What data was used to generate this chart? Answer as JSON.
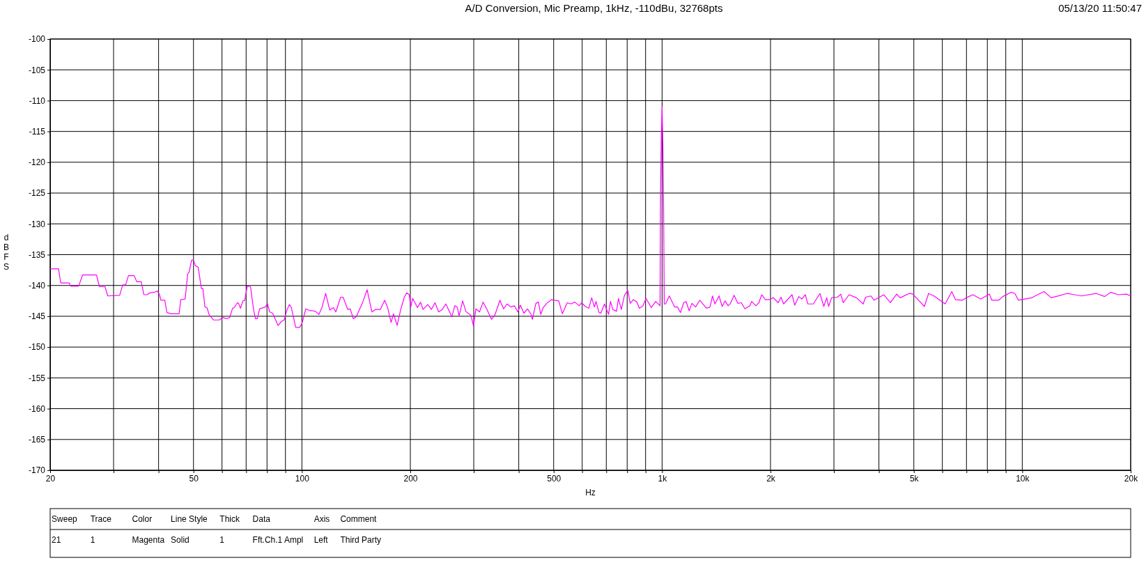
{
  "chart_data": {
    "type": "line",
    "title": "A/D Conversion, Mic Preamp, 1kHz, -110dBu, 32768pts",
    "xlabel": "Hz",
    "ylabel": "dBFS",
    "log": "x",
    "grid": true,
    "line_style": "solid",
    "annotations": [
      "05/13/20 11:50:47",
      "Sweep",
      "Trace",
      "Color",
      "Line Style",
      "Thick",
      "Data",
      "Axis",
      "Comment",
      "21",
      "1",
      "Magenta",
      "Solid",
      "1",
      "Fft.Ch.1 Ampl",
      "Left",
      "Third Party"
    ],
    "xlim": [
      20,
      20000
    ],
    "ylim": [
      -170,
      -100
    ],
    "xticks": [
      20,
      {
        "value": 30,
        "label": null
      },
      {
        "value": 40,
        "label": null
      },
      50,
      {
        "value": 60,
        "label": null
      },
      {
        "value": 70,
        "label": null
      },
      {
        "value": 80,
        "label": null
      },
      {
        "value": 90,
        "label": null
      },
      100,
      200,
      {
        "value": 300,
        "label": null
      },
      {
        "value": 400,
        "label": null
      },
      500,
      {
        "value": 600,
        "label": null
      },
      {
        "value": 700,
        "label": null
      },
      {
        "value": 800,
        "label": null
      },
      {
        "value": 900,
        "label": null
      },
      {
        "value": 1000,
        "label": "1k"
      },
      {
        "value": 2000,
        "label": "2k"
      },
      {
        "value": 3000,
        "label": null
      },
      {
        "value": 4000,
        "label": null
      },
      {
        "value": 5000,
        "label": "5k"
      },
      {
        "value": 6000,
        "label": null
      },
      {
        "value": 7000,
        "label": null
      },
      {
        "value": 8000,
        "label": null
      },
      {
        "value": 9000,
        "label": null
      },
      {
        "value": 10000,
        "label": "10k"
      },
      {
        "value": 20000,
        "label": "20k"
      }
    ],
    "yticks": [
      -170,
      -165,
      -160,
      -155,
      -150,
      -145,
      -140,
      -135,
      -130,
      -125,
      -120,
      -115,
      -110,
      -105,
      -100
    ],
    "series": [
      {
        "color": "#ff00ff",
        "x": [
          20,
          21.1,
          21.4,
          22.6,
          22.8,
          24.0,
          24.6,
          26.9,
          27.4,
          28.4,
          28.9,
          31.2,
          31.8,
          32.4,
          33.0,
          34.2,
          34.8,
          35.8,
          36.4,
          37.2,
          37.8,
          39.0,
          39.6,
          40.2,
          40.6,
          41.6,
          42.2,
          43.4,
          45.6,
          46.1,
          47.4,
          48.2,
          48.6,
          49.4,
          50.0,
          50.6,
          51.5,
          52.6,
          53.1,
          53.8,
          54.5,
          55.3,
          56.8,
          59.0,
          60.2,
          61.8,
          63.0,
          64.2,
          64.9,
          66.2,
          66.7,
          67.5,
          68.6,
          69.4,
          70.5,
          72.0,
          73.4,
          74.3,
          75.2,
          76.3,
          79.2,
          80.2,
          81.4,
          82.9,
          85.9,
          87.9,
          89.3,
          90.7,
          92.3,
          93.5,
          96.1,
          98.6,
          100,
          102.5,
          105.4,
          107,
          109,
          111.5,
          113.8,
          116.4,
          119.5,
          122.3,
          124.2,
          128.1,
          130.1,
          134.1,
          136.2,
          138.9,
          141.5,
          147.1,
          151.7,
          156.4,
          160.1,
          165.1,
          169.7,
          172.8,
          176.9,
          179.6,
          183.8,
          188.1,
          192.5,
          195.4,
          198.5,
          200.6,
          203,
          209.4,
          213.5,
          216.9,
          220.2,
          223.6,
          228.8,
          234.2,
          239.7,
          245.3,
          251.0,
          260.8,
          265.7,
          269.8,
          273.2,
          279.5,
          285.1,
          294.9,
          299.5,
          304.1,
          311.2,
          318.4,
          325.8,
          336.0,
          343.9,
          354.6,
          362.9,
          371.3,
          380.0,
          388.8,
          397.9,
          404.0,
          413.4,
          423.1,
          432.9,
          436.3,
          446.4,
          453.4,
          460.4,
          467.6,
          478.4,
          493.4,
          501.1,
          516.6,
          528.6,
          545.1,
          557.9,
          572.7,
          588.8,
          597.8,
          611.7,
          626.0,
          637.7,
          648.5,
          655.6,
          667.8,
          676.1,
          691.8,
          710.2,
          718.9,
          730.0,
          747.4,
          756.6,
          770.6,
          786.2,
          803.2,
          815.6,
          831.9,
          851.3,
          864.5,
          884.6,
          902.5,
          933.3,
          959.4,
          980,
          987,
          990,
          995,
          1000,
          1005,
          1010,
          1014,
          1023,
          1047,
          1084,
          1104,
          1125,
          1148,
          1166,
          1189,
          1211,
          1239,
          1272,
          1328,
          1359,
          1380,
          1402,
          1439,
          1468,
          1497,
          1525,
          1549,
          1585,
          1622,
          1660,
          1698,
          1752,
          1773,
          1820,
          1857,
          1891,
          1935,
          1980,
          2037,
          2101,
          2140,
          2174,
          2295,
          2335,
          2396,
          2445,
          2499,
          2538,
          2630,
          2743,
          2812,
          2865,
          2900,
          2955,
          3072,
          3134,
          3184,
          3305,
          3463,
          3617,
          3673,
          3800,
          3878,
          4126,
          4304,
          4481,
          4580,
          4857,
          4971,
          5152,
          5348,
          5495,
          5687,
          6110,
          6373,
          6523,
          6812,
          6994,
          7294,
          7677,
          8105,
          8233,
          8601,
          8830,
          9320,
          9539,
          9763,
          10634,
          10851,
          11491,
          12039,
          13318,
          13951,
          14617,
          16047,
          16941,
          17610,
          18450,
          19482,
          20000
        ],
        "values": [
          -137.3,
          -137.3,
          -139.6,
          -139.6,
          -140.1,
          -140.1,
          -138.3,
          -138.3,
          -140.2,
          -140.2,
          -141.7,
          -141.6,
          -139.9,
          -139.9,
          -138.4,
          -138.4,
          -139.4,
          -139.4,
          -141.5,
          -141.5,
          -141.2,
          -141.1,
          -140.9,
          -141.4,
          -142.4,
          -142.4,
          -144.4,
          -144.6,
          -144.6,
          -142.3,
          -142.2,
          -138.1,
          -137.9,
          -135.9,
          -135.9,
          -136.8,
          -137.0,
          -140.5,
          -140.5,
          -143.5,
          -143.6,
          -144.8,
          -145.6,
          -145.6,
          -145.2,
          -145.4,
          -145.2,
          -143.7,
          -143.6,
          -142.8,
          -142.9,
          -143.7,
          -142.5,
          -142.4,
          -140.1,
          -140.2,
          -143.9,
          -145.4,
          -145.4,
          -143.8,
          -143.5,
          -142.9,
          -144.3,
          -144.5,
          -146.5,
          -145.8,
          -145.6,
          -144.1,
          -143.1,
          -143.6,
          -146.8,
          -146.8,
          -146.2,
          -143.8,
          -144.1,
          -144.1,
          -144.2,
          -144.7,
          -143.5,
          -141.3,
          -144.0,
          -143.6,
          -144.3,
          -141.9,
          -141.9,
          -143.9,
          -143.8,
          -145.4,
          -145.1,
          -142.9,
          -140.7,
          -144.3,
          -143.9,
          -143.9,
          -142.4,
          -143.5,
          -146.0,
          -144.6,
          -146.5,
          -143.9,
          -141.9,
          -141.2,
          -141.5,
          -143.5,
          -142.1,
          -143.6,
          -142.7,
          -143.9,
          -143.5,
          -143.1,
          -143.9,
          -142.8,
          -144.3,
          -143.9,
          -143.0,
          -145.1,
          -143.3,
          -143.5,
          -144.9,
          -142.5,
          -144.2,
          -144.9,
          -146.6,
          -143.8,
          -144.3,
          -142.7,
          -143.8,
          -145.5,
          -144.7,
          -142.4,
          -143.8,
          -143.0,
          -143.5,
          -143.3,
          -144.3,
          -143.2,
          -144.5,
          -143.8,
          -144.7,
          -145.5,
          -142.9,
          -142.7,
          -144.7,
          -143.6,
          -142.9,
          -142.3,
          -142.4,
          -142.5,
          -144.6,
          -142.8,
          -143.0,
          -142.7,
          -143.3,
          -142.8,
          -143.4,
          -143.7,
          -142.0,
          -143.5,
          -142.6,
          -144.4,
          -144.5,
          -143.0,
          -144.7,
          -142.6,
          -143.9,
          -144.2,
          -142.1,
          -143.9,
          -141.6,
          -140.8,
          -142.9,
          -142.3,
          -142.7,
          -143.7,
          -143.3,
          -142.1,
          -143.6,
          -142.6,
          -143.1,
          -143.3,
          -125,
          -116,
          -111,
          -117,
          -128,
          -143.0,
          -143.0,
          -141.7,
          -143.5,
          -143.5,
          -144.4,
          -142.8,
          -142.6,
          -144.1,
          -142.9,
          -143.5,
          -142.4,
          -143.7,
          -143.5,
          -141.7,
          -143.0,
          -141.7,
          -143.4,
          -142.5,
          -143.3,
          -142.9,
          -141.6,
          -142.9,
          -142.8,
          -143.8,
          -143.3,
          -142.6,
          -143.3,
          -142.8,
          -141.5,
          -142.3,
          -142.3,
          -142.0,
          -142.8,
          -141.9,
          -143.0,
          -141.5,
          -143.2,
          -141.8,
          -142.2,
          -141.5,
          -143.0,
          -143.0,
          -141.3,
          -143.4,
          -142.0,
          -143.4,
          -142.0,
          -141.9,
          -141.4,
          -142.8,
          -141.5,
          -142.0,
          -143.0,
          -141.9,
          -141.7,
          -142.4,
          -141.5,
          -142.8,
          -141.4,
          -142.0,
          -141.3,
          -141.4,
          -142.4,
          -143.4,
          -141.3,
          -141.7,
          -143.0,
          -141.0,
          -142.3,
          -142.4,
          -142.0,
          -141.5,
          -142.2,
          -141.4,
          -142.4,
          -142.4,
          -141.8,
          -141.1,
          -141.3,
          -142.4,
          -142.0,
          -141.7,
          -141.0,
          -142.0,
          -141.3,
          -141.5,
          -141.7,
          -141.3,
          -141.8,
          -141.1,
          -141.5,
          -141.4,
          -141.7
        ]
      }
    ]
  }
}
